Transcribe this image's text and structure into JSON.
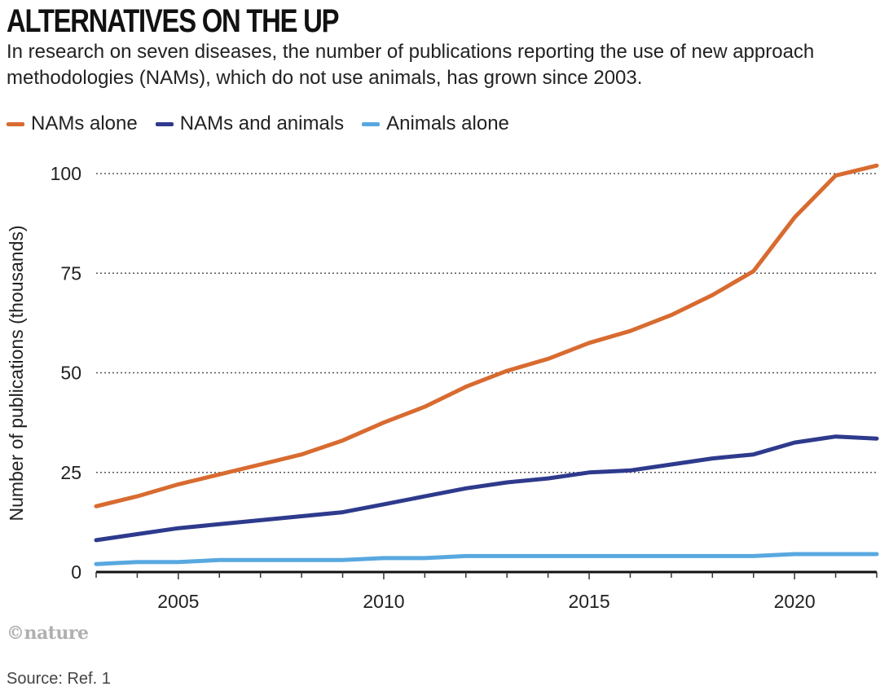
{
  "chart_data": {
    "type": "line",
    "title": "ALTERNATIVES ON THE UP",
    "subtitle": "In research on seven diseases, the number of publications reporting the use of new approach methodologies (NAMs), which do not use animals, has grown since 2003.",
    "xlabel": "",
    "ylabel": "Number of publications (thousands)",
    "x": [
      2003,
      2004,
      2005,
      2006,
      2007,
      2008,
      2009,
      2010,
      2011,
      2012,
      2013,
      2014,
      2015,
      2016,
      2017,
      2018,
      2019,
      2020,
      2021,
      2022
    ],
    "xlim": [
      2003,
      2022
    ],
    "ylim": [
      0,
      100
    ],
    "xticks": [
      2005,
      2010,
      2015,
      2020
    ],
    "yticks": [
      0,
      25,
      50,
      75,
      100
    ],
    "grid": "horizontal-dotted",
    "legend_position": "top-left",
    "series": [
      {
        "name": "NAMs alone",
        "color": "#d86b30",
        "values": [
          16.5,
          19,
          22,
          24.5,
          27,
          29.5,
          33,
          37.5,
          41.5,
          46.5,
          50.5,
          53.5,
          57.5,
          60.5,
          64.5,
          69.5,
          75.5,
          89,
          99.5,
          102
        ]
      },
      {
        "name": "NAMs and animals",
        "color": "#2e3a8c",
        "values": [
          8,
          9.5,
          11,
          12,
          13,
          14,
          15,
          17,
          19,
          21,
          22.5,
          23.5,
          25,
          25.5,
          27,
          28.5,
          29.5,
          32.5,
          34,
          33.5
        ]
      },
      {
        "name": "Animals alone",
        "color": "#58a8e0",
        "values": [
          2,
          2.5,
          2.5,
          3,
          3,
          3,
          3,
          3.5,
          3.5,
          4,
          4,
          4,
          4,
          4,
          4,
          4,
          4,
          4.5,
          4.5,
          4.5
        ]
      }
    ]
  },
  "brand": "©nature",
  "source": "Source: Ref. 1"
}
